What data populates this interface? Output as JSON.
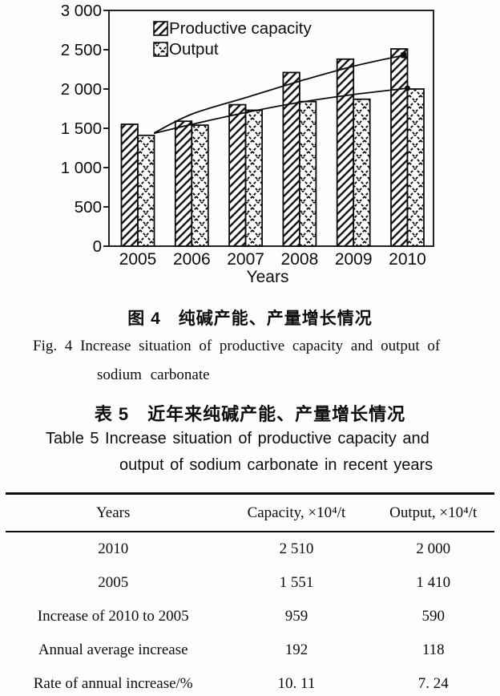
{
  "figure": {
    "caption_zh": "图 4　纯碱产能、产量增长情况",
    "caption_en_line1": "Fig. 4   Increase situation of productive capacity and output of",
    "caption_en_line2": "sodium carbonate"
  },
  "chart_data": {
    "type": "bar",
    "title": "",
    "xlabel": "Years",
    "ylabel": "",
    "ylim": [
      0,
      3000
    ],
    "grid": false,
    "legend_position": "top-left",
    "yticks": [
      0,
      500,
      1000,
      1500,
      2000,
      2500,
      3000
    ],
    "ytick_labels": [
      "0",
      "500",
      "1 000",
      "1 500",
      "2 000",
      "2 500",
      "3 000"
    ],
    "categories": [
      "2005",
      "2006",
      "2007",
      "2008",
      "2009",
      "2010"
    ],
    "series": [
      {
        "name": "Productive capacity",
        "pattern": "diagonal-hatch",
        "values": [
          1551,
          1590,
          1800,
          2210,
          2380,
          2510
        ]
      },
      {
        "name": "Output",
        "pattern": "cross-hatch",
        "values": [
          1410,
          1540,
          1730,
          1840,
          1870,
          2000
        ]
      }
    ],
    "trend_lines": [
      {
        "name": "capacity-trend",
        "end_marker": "square",
        "points": [
          [
            0.3,
            1440
          ],
          [
            1,
            1680
          ],
          [
            2,
            1890
          ],
          [
            3,
            2100
          ],
          [
            4,
            2290
          ],
          [
            4.93,
            2430
          ]
        ]
      },
      {
        "name": "output-trend",
        "end_marker": "circle",
        "points": [
          [
            0.3,
            1435
          ],
          [
            1,
            1550
          ],
          [
            2,
            1700
          ],
          [
            3,
            1830
          ],
          [
            4,
            1930
          ],
          [
            5,
            2010
          ]
        ]
      }
    ]
  },
  "table": {
    "caption_zh": "表 5　近年来纯碱产能、产量增长情况",
    "caption_en_line1": "Table 5   Increase situation of productive capacity and",
    "caption_en_line2": "output of sodium carbonate in recent years",
    "headers": [
      "Years",
      "Capacity, ×10⁴/t",
      "Output, ×10⁴/t"
    ],
    "rows": [
      [
        "2010",
        "2 510",
        "2 000"
      ],
      [
        "2005",
        "1 551",
        "1 410"
      ],
      [
        "Increase of 2010 to 2005",
        "959",
        "590"
      ],
      [
        "Annual average increase",
        "192",
        "118"
      ],
      [
        "Rate of annual increase/%",
        "10. 11",
        "7. 24"
      ]
    ]
  }
}
